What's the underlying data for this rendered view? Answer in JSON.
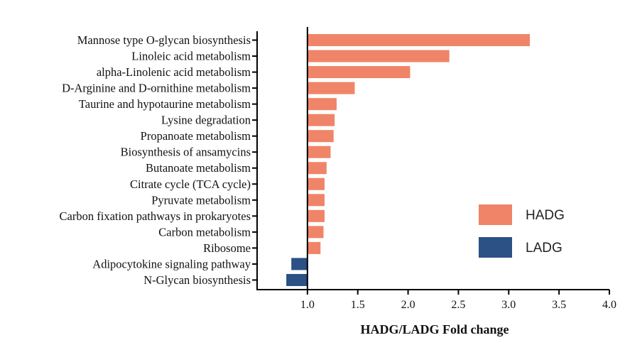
{
  "chart_data": {
    "type": "bar",
    "orientation": "horizontal",
    "categories": [
      "Mannose type O-glycan biosynthesis",
      "Linoleic acid metabolism",
      "alpha-Linolenic acid metabolism",
      "D-Arginine and D-ornithine metabolism",
      "Taurine and hypotaurine metabolism",
      "Lysine degradation",
      "Propanoate metabolism",
      "Biosynthesis of ansamycins",
      "Butanoate metabolism",
      "Citrate cycle (TCA cycle)",
      "Pyruvate metabolism",
      "Carbon fixation pathways in prokaryotes",
      "Carbon metabolism",
      "Ribosome",
      "Adipocytokine signaling pathway",
      "N-Glycan biosynthesis"
    ],
    "values": [
      3.21,
      2.41,
      2.02,
      1.47,
      1.29,
      1.27,
      1.26,
      1.23,
      1.19,
      1.17,
      1.17,
      1.17,
      1.16,
      1.13,
      0.84,
      0.79
    ],
    "groups": [
      "HADG",
      "HADG",
      "HADG",
      "HADG",
      "HADG",
      "HADG",
      "HADG",
      "HADG",
      "HADG",
      "HADG",
      "HADG",
      "HADG",
      "HADG",
      "HADG",
      "LADG",
      "LADG"
    ],
    "baseline": 1.0,
    "xlabel": "HADG/LADG Fold change",
    "xlim": [
      0.5,
      4.0
    ],
    "xticks": [
      "1.0",
      "1.5",
      "2.0",
      "2.5",
      "3.0",
      "3.5",
      "4.0"
    ],
    "grid": false,
    "legend": {
      "placement": "right",
      "items": [
        {
          "name": "HADG",
          "color": "#f08468"
        },
        {
          "name": "LADG",
          "color": "#2b5185"
        }
      ]
    }
  }
}
